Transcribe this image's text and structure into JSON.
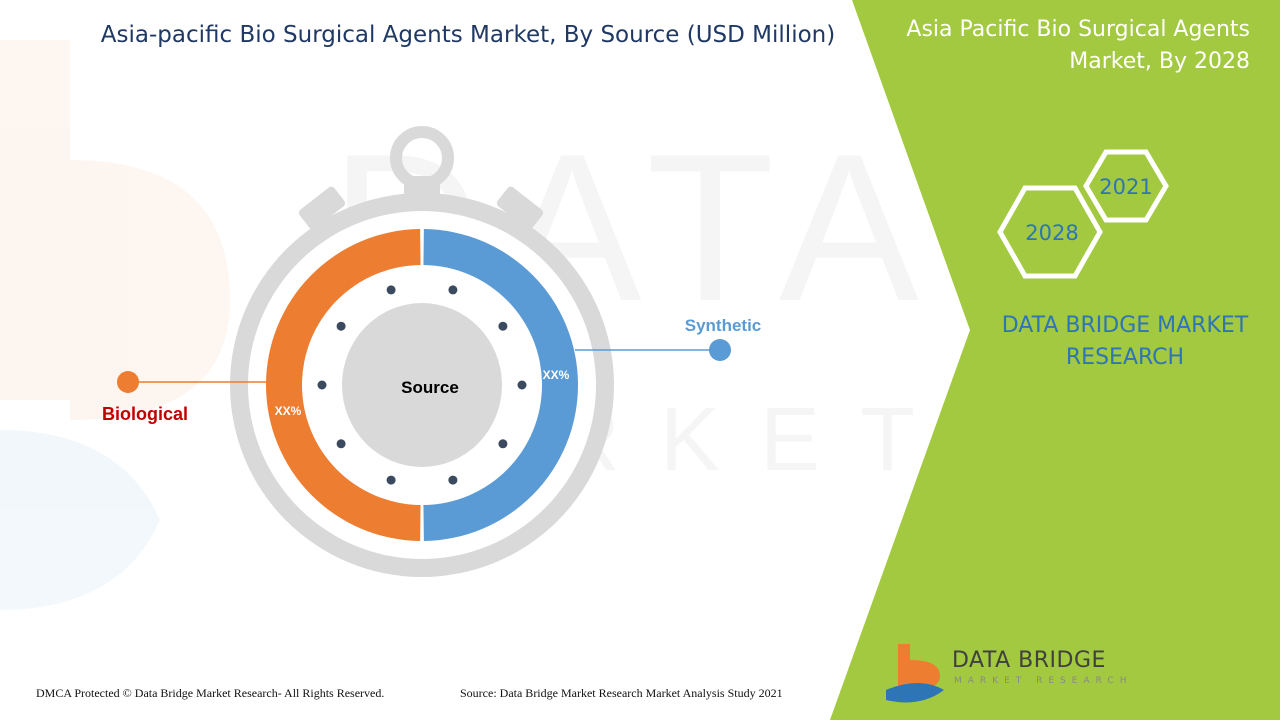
{
  "header": {
    "title": "Asia-pacific Bio Surgical Agents Market, By Source (USD Million)",
    "right_title": "Asia Pacific Bio Surgical Agents Market, By 2028"
  },
  "years": [
    "2021",
    "2028"
  ],
  "brand": {
    "name": "DATA BRIDGE MARKET RESEARCH"
  },
  "footer": {
    "left": "DMCA Protected © Data Bridge Market Research- All Rights Reserved.",
    "right": "Source: Data Bridge Market Research Market Analysis Study 2021"
  },
  "logo": {
    "name": "DATA BRIDGE",
    "tagline": "MARKET RESEARCH"
  },
  "colors": {
    "green_panel": "#a2c93f",
    "biological": "#ed7d31",
    "synthetic": "#5b9bd5",
    "ring_gray": "#d9d9d9",
    "title_blue": "#1f3864"
  },
  "chart_data": {
    "type": "pie",
    "title": "Asia-pacific Bio Surgical Agents Market, By Source (USD Million)",
    "center_label": "Source",
    "categories": [
      "Synthetic",
      "Biological"
    ],
    "values": [
      50,
      50
    ],
    "labels": [
      "XX%",
      "XX%"
    ],
    "colors": [
      "#5b9bd5",
      "#ed7d31"
    ],
    "legend_placement": "callouts"
  }
}
